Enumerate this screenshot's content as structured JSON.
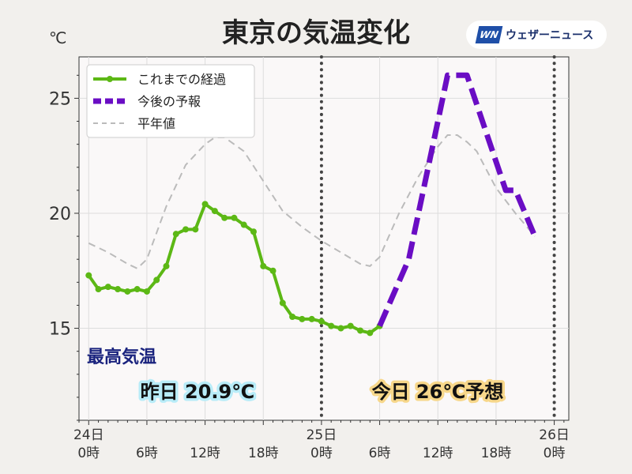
{
  "title": "東京の気温変化",
  "unit_label": "℃",
  "logo": {
    "mark": "WN",
    "text": "ウェザーニュース"
  },
  "colors": {
    "observed": "#5cb815",
    "forecast": "#6a0dc4",
    "normal": "#bbbbbb",
    "heading": "#1a237e",
    "yesterday_glow": "#b8ecf8",
    "today_glow": "#f7d78a"
  },
  "chart_data": {
    "type": "line",
    "title": "東京の気温変化",
    "ylabel": "℃",
    "ylim": [
      11,
      26.8
    ],
    "yticks": [
      15,
      20,
      25
    ],
    "xlim": [
      -1,
      49.5
    ],
    "x_unit": "hours",
    "x_ticks": [
      {
        "x": 0,
        "lines": [
          "24日",
          "0時"
        ]
      },
      {
        "x": 6,
        "lines": [
          "",
          "6時"
        ]
      },
      {
        "x": 12,
        "lines": [
          "",
          "12時"
        ]
      },
      {
        "x": 18,
        "lines": [
          "",
          "18時"
        ]
      },
      {
        "x": 24,
        "lines": [
          "25日",
          "0時"
        ]
      },
      {
        "x": 30,
        "lines": [
          "",
          "6時"
        ]
      },
      {
        "x": 36,
        "lines": [
          "",
          "12時"
        ]
      },
      {
        "x": 42,
        "lines": [
          "",
          "18時"
        ]
      },
      {
        "x": 48,
        "lines": [
          "26日",
          "0時"
        ]
      }
    ],
    "day_boundaries": [
      24,
      48
    ],
    "grid": true,
    "legend_position": "top-left",
    "series": [
      {
        "name": "これまでの経過",
        "style": "solid-markers",
        "x": [
          0,
          1,
          2,
          3,
          4,
          5,
          6,
          7,
          8,
          9,
          10,
          11,
          12,
          13,
          14,
          15,
          16,
          17,
          18,
          19,
          20,
          21,
          22,
          23,
          24,
          25,
          26,
          27,
          28,
          29,
          30
        ],
        "values": [
          17.3,
          16.7,
          16.8,
          16.7,
          16.6,
          16.7,
          16.6,
          17.1,
          17.7,
          19.1,
          19.3,
          19.3,
          20.4,
          20.1,
          19.8,
          19.8,
          19.5,
          19.2,
          17.7,
          17.5,
          16.1,
          15.5,
          15.4,
          15.4,
          15.3,
          15.1,
          15.0,
          15.1,
          14.9,
          14.8,
          15.1
        ]
      },
      {
        "name": "今後の予報",
        "style": "dashed-thick",
        "x": [
          30,
          33,
          36,
          37,
          38,
          39,
          41,
          43,
          44,
          46
        ],
        "values": [
          15.1,
          18.0,
          24.0,
          26.0,
          26.0,
          26.0,
          23.5,
          21.0,
          21.0,
          19.0
        ]
      },
      {
        "name": "平年値",
        "style": "dashed-thin",
        "x": [
          0,
          2,
          4,
          5,
          6,
          8,
          10,
          12,
          13,
          14,
          16,
          18,
          20,
          22,
          24,
          26,
          28,
          29,
          30,
          32,
          34,
          36,
          37,
          38,
          39,
          40,
          42,
          44,
          46
        ],
        "values": [
          18.7,
          18.3,
          17.8,
          17.6,
          18.0,
          20.3,
          22.1,
          23.0,
          23.3,
          23.3,
          22.7,
          21.4,
          20.1,
          19.4,
          18.8,
          18.3,
          17.8,
          17.7,
          18.1,
          20.0,
          21.6,
          22.9,
          23.4,
          23.4,
          23.1,
          22.7,
          21.1,
          20.0,
          19.0
        ]
      }
    ],
    "annotations": {
      "heading": "最高気温",
      "yesterday": "昨日 20.9℃",
      "today": "今日 26℃予想"
    }
  }
}
